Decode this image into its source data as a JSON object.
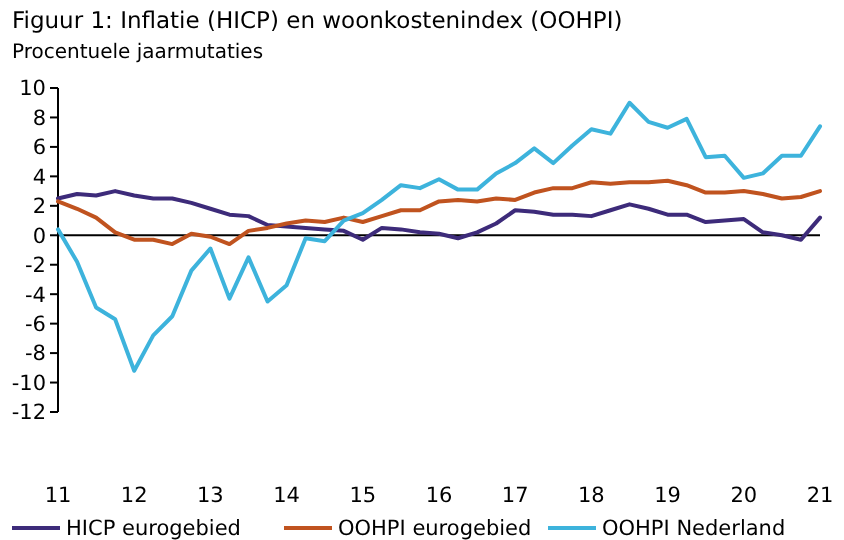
{
  "chart_data": {
    "type": "line",
    "title": "Figuur 1: Inflatie (HICP) en woonkostenindex (OOHPI)",
    "subtitle": "Procentuele jaarmutaties",
    "x": [
      11,
      11.25,
      11.5,
      11.75,
      12,
      12.25,
      12.5,
      12.75,
      13,
      13.25,
      13.5,
      13.75,
      14,
      14.25,
      14.5,
      14.75,
      15,
      15.25,
      15.5,
      15.75,
      16,
      16.25,
      16.5,
      16.75,
      17,
      17.25,
      17.5,
      17.75,
      18,
      18.25,
      18.5,
      18.75,
      19,
      19.25,
      19.5,
      19.75,
      20,
      20.25,
      20.5,
      20.75,
      21
    ],
    "series": [
      {
        "name": "HICP eurogebied",
        "color": "#3d2b7a",
        "values": [
          2.5,
          2.8,
          2.7,
          3.0,
          2.7,
          2.5,
          2.5,
          2.2,
          1.8,
          1.4,
          1.3,
          0.7,
          0.6,
          0.5,
          0.4,
          0.3,
          -0.3,
          0.5,
          0.4,
          0.2,
          0.1,
          -0.2,
          0.2,
          0.8,
          1.7,
          1.6,
          1.4,
          1.4,
          1.3,
          1.7,
          2.1,
          1.8,
          1.4,
          1.4,
          0.9,
          1.0,
          1.1,
          0.2,
          0.0,
          -0.3,
          1.2
        ]
      },
      {
        "name": "OOHPI eurogebied",
        "color": "#c0531f",
        "values": [
          2.3,
          1.8,
          1.2,
          0.2,
          -0.3,
          -0.3,
          -0.6,
          0.1,
          -0.1,
          -0.6,
          0.3,
          0.5,
          0.8,
          1.0,
          0.9,
          1.2,
          0.9,
          1.3,
          1.7,
          1.7,
          2.3,
          2.4,
          2.3,
          2.5,
          2.4,
          2.9,
          3.2,
          3.2,
          3.6,
          3.5,
          3.6,
          3.6,
          3.7,
          3.4,
          2.9,
          2.9,
          3.0,
          2.8,
          2.5,
          2.6,
          3.0
        ]
      },
      {
        "name": "OOHPI Nederland",
        "color": "#3db3dc",
        "values": [
          0.4,
          -1.8,
          -4.9,
          -5.7,
          -9.2,
          -6.8,
          -5.5,
          -2.4,
          -0.9,
          -4.3,
          -1.5,
          -4.5,
          -3.4,
          -0.2,
          -0.4,
          1.0,
          1.5,
          2.4,
          3.4,
          3.2,
          3.8,
          3.1,
          3.1,
          4.2,
          4.9,
          5.9,
          4.9,
          6.1,
          7.2,
          6.9,
          9.0,
          7.7,
          7.3,
          7.9,
          5.3,
          5.4,
          3.9,
          4.2,
          5.4,
          5.4,
          7.4
        ]
      }
    ],
    "xlim": [
      11,
      21
    ],
    "xticks": [
      11,
      12,
      13,
      14,
      15,
      16,
      17,
      18,
      19,
      20,
      21
    ],
    "ylim": [
      -12,
      10
    ],
    "yticks": [
      -12,
      -10,
      -8,
      -6,
      -4,
      -2,
      0,
      2,
      4,
      6,
      8,
      10
    ],
    "ref_lines": [
      {
        "axis": "y",
        "value": 0,
        "color": "#000000"
      }
    ],
    "legend": "bottom",
    "grid": false,
    "marker": "none",
    "line_style": "solid"
  }
}
